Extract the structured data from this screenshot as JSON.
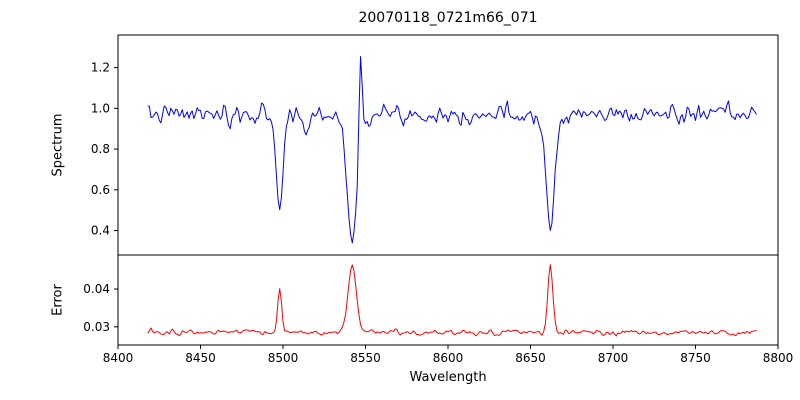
{
  "chart_data": {
    "type": "line",
    "title": "20070118_0721m66_071",
    "xlabel": "Wavelength",
    "xlim": [
      8400,
      8800
    ],
    "x_range": [
      8418,
      8787
    ],
    "x_step": 1,
    "x_ticks": [
      8400,
      8450,
      8500,
      8550,
      8600,
      8650,
      8700,
      8750,
      8800
    ],
    "x_tick_labels": [
      "8400",
      "8450",
      "8500",
      "8550",
      "8600",
      "8650",
      "8700",
      "8750",
      "8800"
    ],
    "grid": false,
    "legend": "none",
    "panels": [
      {
        "ylabel": "Spectrum",
        "ylim": [
          0.28,
          1.36
        ],
        "y_ticks": [
          0.4,
          0.6,
          0.8,
          1.0,
          1.2
        ],
        "y_tick_labels": [
          "0.4",
          "0.6",
          "0.8",
          "1.0",
          "1.2"
        ],
        "series": {
          "name": "spectrum",
          "color": "#0000ff",
          "baseline": 0.97,
          "noise_sigma": 0.03,
          "features": [
            {
              "type": "absorption",
              "center": 8468,
              "depth": 0.07,
              "width": 1.5
            },
            {
              "type": "absorption",
              "center": 8498,
              "depth": 0.47,
              "width": 2.0
            },
            {
              "type": "absorption",
              "center": 8514,
              "depth": 0.1,
              "width": 1.5
            },
            {
              "type": "absorption",
              "center": 8542,
              "depth": 0.64,
              "width": 3.0
            },
            {
              "type": "emission",
              "center": 8547,
              "height": 0.48,
              "width": 0.9
            },
            {
              "type": "absorption",
              "center": 8662,
              "depth": 0.57,
              "width": 2.5
            }
          ]
        }
      },
      {
        "ylabel": "Error",
        "ylim": [
          0.0252,
          0.049
        ],
        "y_ticks": [
          0.03,
          0.04
        ],
        "y_tick_labels": [
          "0.03",
          "0.04"
        ],
        "series": {
          "name": "error",
          "color": "#ff0000",
          "baseline": 0.0285,
          "noise_sigma": 0.0005,
          "features": [
            {
              "type": "emission",
              "center": 8498,
              "height": 0.0115,
              "width": 1.2
            },
            {
              "type": "emission",
              "center": 8542,
              "height": 0.0175,
              "width": 2.5
            },
            {
              "type": "emission",
              "center": 8662,
              "height": 0.0175,
              "width": 1.5
            }
          ]
        }
      }
    ]
  }
}
